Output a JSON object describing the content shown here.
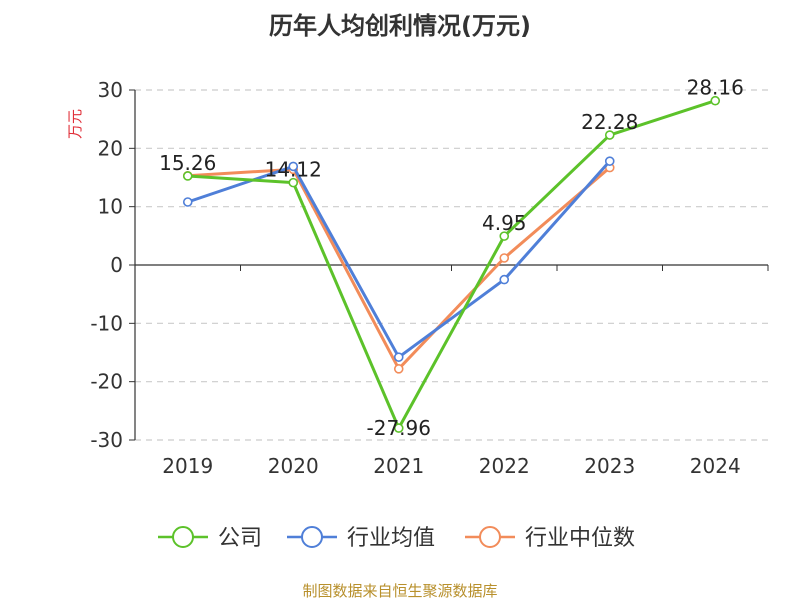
{
  "chart_data": {
    "type": "line",
    "title": "历年人均创利情况(万元)",
    "ylabel": "万元",
    "categories": [
      "2019",
      "2020",
      "2021",
      "2022",
      "2023",
      "2024"
    ],
    "ylim": [
      -30,
      30
    ],
    "yticks": [
      30,
      20,
      10,
      0,
      -10,
      -20,
      -30
    ],
    "grid": true,
    "legend_position": "bottom",
    "series": [
      {
        "name": "公司",
        "color": "#5cc22a",
        "values": [
          15.26,
          14.12,
          -27.96,
          4.95,
          22.28,
          28.16
        ],
        "labels": [
          "15.26",
          "14.12",
          "-27.96",
          "4.95",
          "22.28",
          "28.16"
        ]
      },
      {
        "name": "行业均值",
        "color": "#4f7fd8",
        "values": [
          10.8,
          16.9,
          -15.8,
          -2.5,
          17.8,
          null
        ]
      },
      {
        "name": "行业中位数",
        "color": "#f28c5a",
        "values": [
          15.3,
          16.4,
          -17.8,
          1.2,
          16.7,
          null
        ]
      }
    ]
  },
  "source": "制图数据来自恒生聚源数据库"
}
